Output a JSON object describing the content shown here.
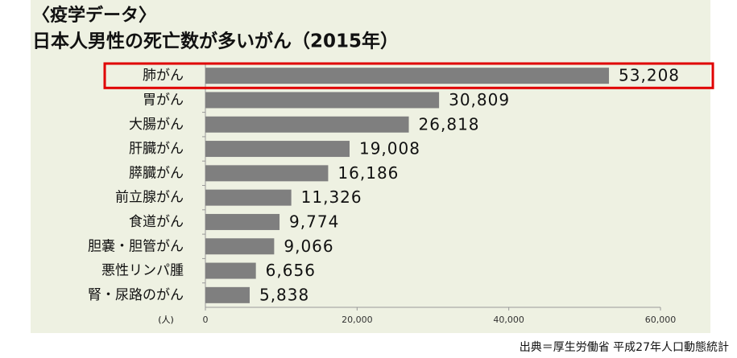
{
  "chart_data": {
    "type": "barh",
    "title": "〈疫学データ〉",
    "subtitle": "日本人男性の死亡数が多いがん（2015年）",
    "categories": [
      "肺がん",
      "胃がん",
      "大腸がん",
      "肝臓がん",
      "膵臓がん",
      "前立腺がん",
      "食道がん",
      "胆嚢・胆管がん",
      "悪性リンパ腫",
      "腎・尿路のがん"
    ],
    "values": [
      53208,
      30809,
      26818,
      19008,
      16186,
      11326,
      9774,
      9066,
      6656,
      5838
    ],
    "value_labels": [
      "53,208",
      "30,809",
      "26,818",
      "19,008",
      "16,186",
      "11,326",
      "9,774",
      "9,066",
      "6,656",
      "5,838"
    ],
    "color": "#7f7f7f",
    "xlabel": "(人)",
    "xlim": [
      0,
      60000
    ],
    "xticks": [
      0,
      {
        "value": 20000,
        "label": "20,000"
      },
      {
        "value": 40000,
        "label": "40,000"
      },
      {
        "value": 60000,
        "label": "60,000"
      }
    ],
    "source": "出典＝厚生労働省 平成27年人口動態統計"
  }
}
